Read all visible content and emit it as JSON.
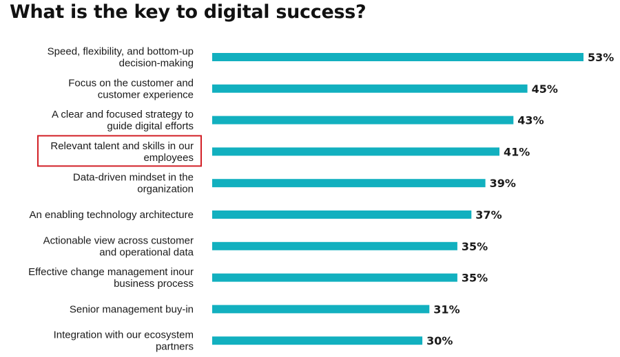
{
  "chart_data": {
    "type": "bar",
    "orientation": "horizontal",
    "title": "What is the key to digital success?",
    "categories": [
      [
        "Speed, flexibility, and bottom-up",
        "decision-making"
      ],
      [
        "Focus on the customer and",
        "customer experience"
      ],
      [
        "A clear and focused strategy to",
        "guide digital efforts"
      ],
      [
        "Relevant talent and skills in our",
        "employees"
      ],
      [
        "Data-driven mindset in the",
        "organization"
      ],
      [
        "An enabling technology architecture"
      ],
      [
        "Actionable view across customer",
        "and operational data"
      ],
      [
        "Effective change management inour",
        "business process"
      ],
      [
        "Senior management buy-in"
      ],
      [
        "Integration with our ecosystem",
        "partners"
      ]
    ],
    "values": [
      53,
      45,
      43,
      41,
      39,
      37,
      35,
      35,
      31,
      30
    ],
    "value_labels": [
      "53%",
      "45%",
      "43%",
      "41%",
      "39%",
      "37%",
      "35%",
      "35%",
      "31%",
      "30%"
    ],
    "highlighted_index": 3,
    "bar_color": "#12b0bf",
    "highlight_color": "#d21f26",
    "xlabel": "",
    "ylabel": ""
  }
}
